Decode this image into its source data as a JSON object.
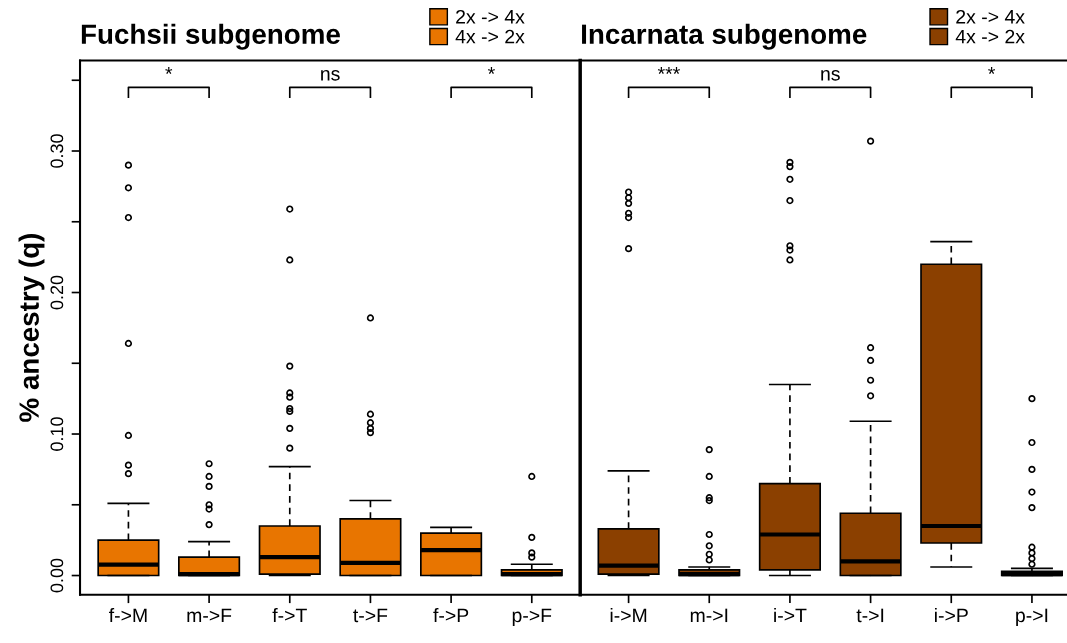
{
  "chart_data": [
    {
      "type": "box",
      "title": "Fuchsii subgenome",
      "ylabel": "% ancestry (q)",
      "categories": [
        "f->M",
        "m->F",
        "f->T",
        "t->F",
        "f->P",
        "p->F"
      ],
      "ylim": [
        -0.0136,
        0.364
      ],
      "yticks": [
        {
          "value": 0,
          "label": "0.00"
        },
        {
          "value": 0.05,
          "label": null
        },
        {
          "value": 0.1,
          "label": "0.10"
        },
        {
          "value": 0.15,
          "label": null
        },
        {
          "value": 0.2,
          "label": "0.20"
        },
        {
          "value": 0.25,
          "label": null
        },
        {
          "value": 0.3,
          "label": "0.30"
        },
        {
          "value": 0.35,
          "label": null
        }
      ],
      "legend": "top right",
      "annotations": [
        "*",
        "ns",
        "*"
      ],
      "colors": [
        "#e87500",
        "#e87500",
        "#e87500",
        "#e87500",
        "#e87500",
        "#e87500"
      ],
      "boxes": [
        {
          "low": 0,
          "q1": 0,
          "median": 0.0077,
          "q3": 0.025,
          "high": 0.051,
          "outliers": [
            0.29,
            0.274,
            0.253,
            0.164,
            0.099,
            0.078,
            0.072
          ]
        },
        {
          "low": 0,
          "q1": 0,
          "median": 0.001,
          "q3": 0.013,
          "high": 0.024,
          "outliers": [
            0.079,
            0.07,
            0.063,
            0.05,
            0.047,
            0.036
          ]
        },
        {
          "low": 0,
          "q1": 0.001,
          "median": 0.013,
          "q3": 0.035,
          "high": 0.077,
          "outliers": [
            0.259,
            0.223,
            0.148,
            0.129,
            0.126,
            0.118,
            0.116,
            0.104,
            0.09
          ]
        },
        {
          "low": 0,
          "q1": 0,
          "median": 0.009,
          "q3": 0.04,
          "high": 0.053,
          "outliers": [
            0.182,
            0.114,
            0.108,
            0.104,
            0.101
          ]
        },
        {
          "low": 0,
          "q1": 0,
          "median": 0.018,
          "q3": 0.03,
          "high": 0.034
        },
        {
          "low": 0,
          "q1": 0,
          "median": 0.001,
          "q3": 0.004,
          "high": 0.008,
          "outliers": [
            0.07,
            0.027,
            0.016,
            0.013
          ]
        }
      ],
      "series": [
        {
          "name": "2x -> 4x",
          "color": "#e87500",
          "values": [
            null,
            null,
            null,
            null,
            null,
            null
          ]
        },
        {
          "name": "4x -> 2x",
          "color": "#e87500",
          "values": [
            null,
            null,
            null,
            null,
            null,
            null
          ]
        }
      ]
    },
    {
      "type": "box",
      "title": "Incarnata subgenome",
      "categories": [
        "i->M",
        "m->I",
        "i->T",
        "t->I",
        "i->P",
        "p->I"
      ],
      "ylim": [
        -0.0136,
        0.364
      ],
      "tick_labels": "x",
      "legend": "top right",
      "annotations": [
        "***",
        "ns",
        "*"
      ],
      "colors": [
        "#8b4000",
        "#8b4000",
        "#8b4000",
        "#8b4000",
        "#8b4000",
        "#8b4000"
      ],
      "boxes": [
        {
          "low": 0,
          "q1": 0.001,
          "median": 0.007,
          "q3": 0.033,
          "high": 0.074,
          "outliers": [
            0.271,
            0.267,
            0.263,
            0.256,
            0.253,
            0.231
          ]
        },
        {
          "low": 0,
          "q1": 0,
          "median": 0.001,
          "q3": 0.004,
          "high": 0.006,
          "outliers": [
            0.089,
            0.07,
            0.055,
            0.053,
            0.029,
            0.021,
            0.015,
            0.011
          ]
        },
        {
          "low": 0,
          "q1": 0.004,
          "median": 0.029,
          "q3": 0.065,
          "high": 0.135,
          "outliers": [
            0.292,
            0.289,
            0.28,
            0.265,
            0.233,
            0.23,
            0.223
          ]
        },
        {
          "low": 0,
          "q1": 0,
          "median": 0.01,
          "q3": 0.044,
          "high": 0.109,
          "outliers": [
            0.307,
            0.161,
            0.152,
            0.138,
            0.127
          ]
        },
        {
          "low": 0.006,
          "q1": 0.023,
          "median": 0.035,
          "q3": 0.22,
          "high": 0.236
        },
        {
          "low": 0,
          "q1": 0,
          "median": 0.001,
          "q3": 0.003,
          "high": 0.005,
          "outliers": [
            0.125,
            0.094,
            0.075,
            0.059,
            0.048,
            0.02,
            0.016,
            0.012,
            0.008
          ]
        }
      ],
      "series": [
        {
          "name": "2x -> 4x",
          "color": "#8b4000",
          "values": [
            null,
            null,
            null,
            null,
            null,
            null
          ]
        },
        {
          "name": "4x -> 2x",
          "color": "#8b4000",
          "values": [
            null,
            null,
            null,
            null,
            null,
            null
          ]
        }
      ]
    }
  ]
}
